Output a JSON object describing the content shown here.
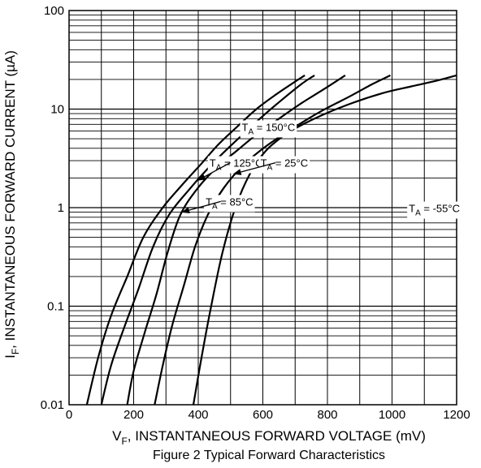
{
  "chart_data": {
    "type": "line",
    "title": "",
    "caption": "Figure 2 Typical Forward Characteristics",
    "xlabel": {
      "main": "V",
      "sub": "F",
      "rest": ", INSTANTANEOUS FORWARD VOLTAGE (mV)"
    },
    "ylabel": {
      "main": "I",
      "sub": "F",
      "rest": ", INSTANTANEOUS FORWARD CURRENT (µA)"
    },
    "xlim": [
      0,
      1200
    ],
    "ylim": [
      0.01,
      100
    ],
    "yscale": "log",
    "grid": true,
    "x_ticks": [
      {
        "value": 0,
        "label": "0"
      },
      {
        "value": 200,
        "label": "200"
      },
      {
        "value": 400,
        "label": "400"
      },
      {
        "value": 600,
        "label": "600"
      },
      {
        "value": 800,
        "label": "800"
      },
      {
        "value": 1000,
        "label": "1000"
      },
      {
        "value": 1200,
        "label": "1200"
      }
    ],
    "y_ticks": [
      {
        "value": 0.01,
        "label": "0.01"
      },
      {
        "value": 0.1,
        "label": "0.1"
      },
      {
        "value": 1,
        "label": "1"
      },
      {
        "value": 10,
        "label": "10"
      },
      {
        "value": 100,
        "label": "100"
      }
    ],
    "series": [
      {
        "name": "T_A = 150°C",
        "label_main": "T",
        "label_sub": "A",
        "label_rest": " = 150°C",
        "x": [
          55,
          90,
          130,
          180,
          230,
          290,
          350,
          410,
          460,
          520,
          580,
          640,
          700,
          730
        ],
        "y": [
          0.01,
          0.03,
          0.08,
          0.2,
          0.5,
          1.0,
          1.7,
          2.8,
          4.3,
          6.6,
          10,
          14,
          19,
          22
        ]
      },
      {
        "name": "T_A = 125°C",
        "label_main": "T",
        "label_sub": "A",
        "label_rest": " = 125°C",
        "x": [
          100,
          130,
          170,
          215,
          260,
          310,
          370,
          430,
          485,
          540,
          600,
          660,
          720,
          760
        ],
        "y": [
          0.01,
          0.025,
          0.06,
          0.15,
          0.4,
          0.85,
          1.5,
          2.5,
          3.8,
          5.6,
          8.5,
          12.5,
          18,
          22
        ]
      },
      {
        "name": "T_A = 85°C",
        "label_main": "T",
        "label_sub": "A",
        "label_rest": " = 85°C",
        "x": [
          180,
          200,
          235,
          270,
          305,
          345,
          400,
          460,
          520,
          580,
          650,
          720,
          790,
          855
        ],
        "y": [
          0.01,
          0.022,
          0.055,
          0.13,
          0.35,
          0.85,
          1.6,
          2.6,
          3.8,
          5.5,
          8.0,
          11.5,
          16,
          22
        ]
      },
      {
        "name": "T_A = 25°C",
        "label_main": "T",
        "label_sub": "A",
        "label_rest": " = 25°C",
        "x": [
          265,
          290,
          320,
          355,
          390,
          430,
          480,
          540,
          610,
          690,
          780,
          870,
          940,
          995
        ],
        "y": [
          0.01,
          0.025,
          0.065,
          0.16,
          0.4,
          0.85,
          1.6,
          2.7,
          4.2,
          6.3,
          9.5,
          13.5,
          18,
          22
        ]
      },
      {
        "name": "T_A = -55°C",
        "label_main": "T",
        "label_sub": "A",
        "label_rest": " = -55°C",
        "x": [
          385,
          410,
          440,
          475,
          515,
          560,
          610,
          680,
          760,
          860,
          970,
          1060,
          1140,
          1200
        ],
        "y": [
          0.01,
          0.03,
          0.1,
          0.35,
          1.0,
          2.2,
          3.8,
          5.8,
          8.0,
          11,
          14.5,
          17,
          19.5,
          22
        ]
      }
    ],
    "annotations": [
      {
        "series_index": 0,
        "text_main": "T",
        "text_sub": "A",
        "text_rest": " = 150°C",
        "text_x": 700,
        "text_y": 6.0,
        "arrow": false,
        "point_x": null,
        "point_y": null
      },
      {
        "series_index": 1,
        "text_main": "T",
        "text_sub": "A",
        "text_rest": " = 125°C",
        "text_x": 600,
        "text_y": 2.6,
        "arrow": true,
        "point_x": 400,
        "point_y": 1.9
      },
      {
        "series_index": 2,
        "text_main": "T",
        "text_sub": "A",
        "text_rest": " = 85°C",
        "text_x": 570,
        "text_y": 1.05,
        "arrow": true,
        "point_x": 350,
        "point_y": 0.9
      },
      {
        "series_index": 3,
        "text_main": "T",
        "text_sub": "A",
        "text_rest": " = 25°C",
        "text_x": 740,
        "text_y": 2.6,
        "arrow": true,
        "point_x": 510,
        "point_y": 2.2
      },
      {
        "series_index": 4,
        "text_main": "T",
        "text_sub": "A",
        "text_rest": " = -55°C",
        "text_x": 1210,
        "text_y": 0.9,
        "arrow": false,
        "point_x": null,
        "point_y": null
      }
    ],
    "colors": {
      "line": "#000000",
      "grid": "#000000",
      "background": "#ffffff"
    }
  }
}
